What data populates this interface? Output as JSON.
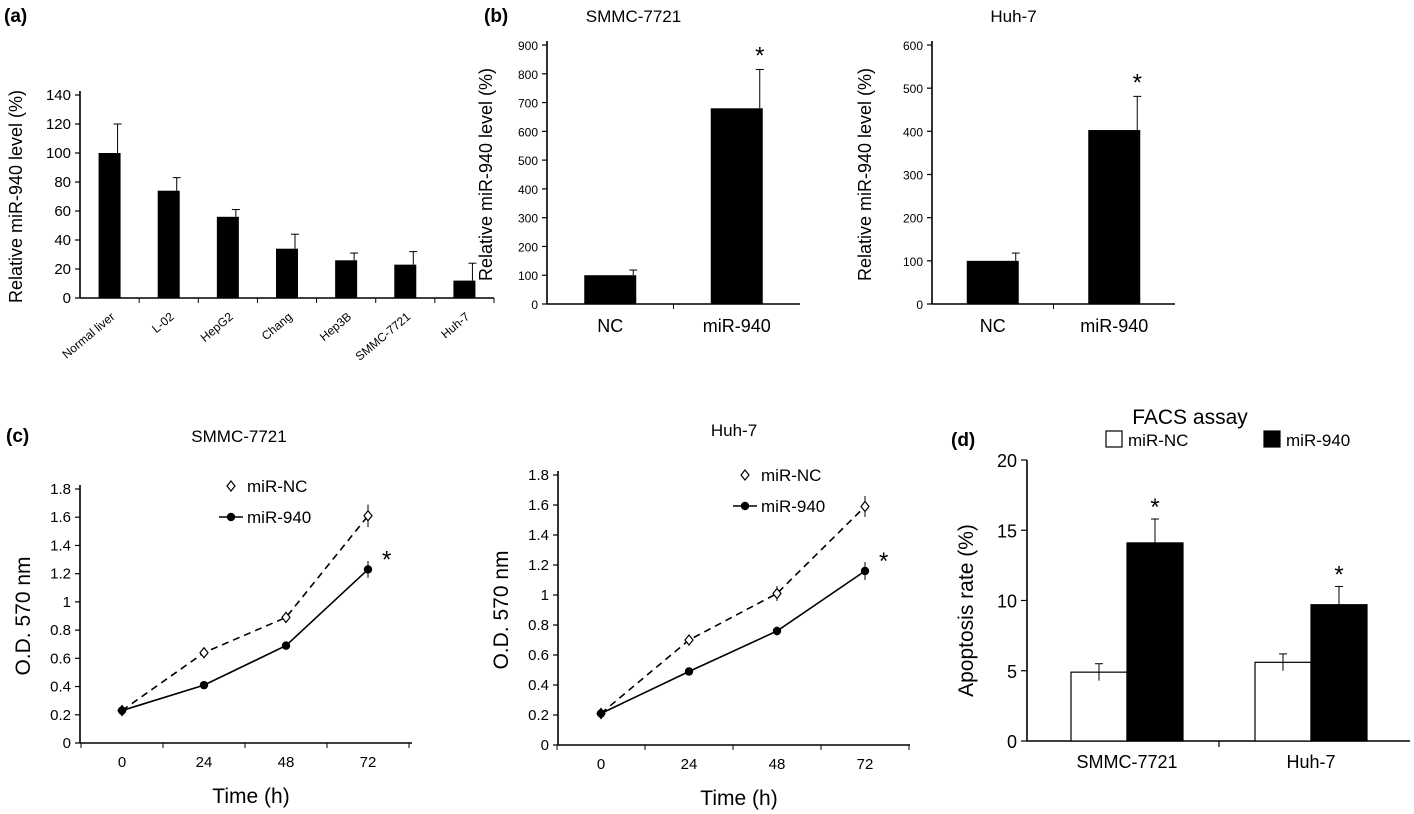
{
  "figure": {
    "panels": [
      {
        "label": "(a)"
      },
      {
        "label": "(b)"
      },
      {
        "label": "(c)"
      },
      {
        "label": "(d)"
      }
    ]
  },
  "chart_data": [
    {
      "id": "a",
      "type": "bar",
      "title": "",
      "xlabel": "",
      "ylabel": "Relative miR-940 level (%)",
      "ylim": [
        0,
        140
      ],
      "yticks": [
        0,
        20,
        40,
        60,
        80,
        100,
        120,
        140
      ],
      "categories": [
        "Normal liver",
        "L-02",
        "HepG2",
        "Chang",
        "Hep3B",
        "SMMC-7721",
        "Huh-7"
      ],
      "series": [
        {
          "values": [
            100,
            74,
            56,
            34,
            26,
            23,
            12
          ],
          "errors": [
            20,
            9,
            5,
            10,
            5,
            9,
            12
          ],
          "color": "#000000"
        }
      ]
    },
    {
      "id": "b1",
      "type": "bar",
      "title": "SMMC-7721",
      "xlabel": "",
      "ylabel": "Relative miR-940 level (%)",
      "ylim": [
        0,
        900
      ],
      "yticks": [
        0,
        100,
        200,
        300,
        400,
        500,
        600,
        700,
        800,
        900
      ],
      "categories": [
        "NC",
        "miR-940"
      ],
      "series": [
        {
          "values": [
            100,
            680
          ],
          "errors": [
            18,
            135
          ],
          "color": "#000000"
        }
      ],
      "annotations": [
        {
          "category": "miR-940",
          "text": "*"
        }
      ]
    },
    {
      "id": "b2",
      "type": "bar",
      "title": "Huh-7",
      "xlabel": "",
      "ylabel": "Relative miR-940 level (%)",
      "ylim": [
        0,
        600
      ],
      "yticks": [
        0,
        100,
        200,
        300,
        400,
        500,
        600
      ],
      "categories": [
        "NC",
        "miR-940"
      ],
      "series": [
        {
          "values": [
            100,
            403
          ],
          "errors": [
            18,
            78
          ],
          "color": "#000000"
        }
      ],
      "annotations": [
        {
          "category": "miR-940",
          "text": "*"
        }
      ]
    },
    {
      "id": "c1",
      "type": "line",
      "title": "SMMC-7721",
      "xlabel": "Time (h)",
      "ylabel": "O.D. 570 nm",
      "ylim": [
        0,
        1.8
      ],
      "yticks": [
        "0",
        "0.2",
        "0.4",
        "0.6",
        "0.8",
        "1",
        "1.2",
        "1.4",
        "1.6",
        "1.8"
      ],
      "categories": [
        "0",
        "24",
        "48",
        "72"
      ],
      "legend_position": "top-center",
      "series": [
        {
          "name": "miR-NC",
          "values": [
            0.23,
            0.64,
            0.89,
            1.61
          ],
          "errors": [
            0.01,
            0.02,
            0.04,
            0.08
          ],
          "style": "dashed",
          "marker": "open-diamond"
        },
        {
          "name": "miR-940",
          "values": [
            0.23,
            0.41,
            0.69,
            1.23
          ],
          "errors": [
            0.01,
            0.01,
            0.02,
            0.06
          ],
          "style": "solid",
          "marker": "filled-circle"
        }
      ],
      "annotations": [
        {
          "series": "miR-940",
          "x": "72",
          "text": "*"
        }
      ]
    },
    {
      "id": "c2",
      "type": "line",
      "title": "Huh-7",
      "xlabel": "Time (h)",
      "ylabel": "O.D. 570 nm",
      "ylim": [
        0,
        1.8
      ],
      "yticks": [
        "0",
        "0.2",
        "0.4",
        "0.6",
        "0.8",
        "1",
        "1.2",
        "1.4",
        "1.6",
        "1.8"
      ],
      "categories": [
        "0",
        "24",
        "48",
        "72"
      ],
      "legend_position": "top-center",
      "series": [
        {
          "name": "miR-NC",
          "values": [
            0.21,
            0.7,
            1.01,
            1.59
          ],
          "errors": [
            0.01,
            0.02,
            0.05,
            0.07
          ],
          "style": "dashed",
          "marker": "open-diamond"
        },
        {
          "name": "miR-940",
          "values": [
            0.21,
            0.49,
            0.76,
            1.16
          ],
          "errors": [
            0.01,
            0.01,
            0.03,
            0.06
          ],
          "style": "solid",
          "marker": "filled-circle"
        }
      ],
      "annotations": [
        {
          "series": "miR-940",
          "x": "72",
          "text": "*"
        }
      ]
    },
    {
      "id": "d",
      "type": "bar",
      "title": "FACS assay",
      "xlabel": "",
      "ylabel": "Apoptosis rate (%)",
      "ylim": [
        0,
        20
      ],
      "yticks": [
        0,
        5,
        10,
        15,
        20
      ],
      "categories": [
        "SMMC-7721",
        "Huh-7"
      ],
      "legend_position": "top",
      "series": [
        {
          "name": "miR-NC",
          "values": [
            4.9,
            5.6
          ],
          "errors": [
            0.6,
            0.6
          ],
          "color": "#ffffff"
        },
        {
          "name": "miR-940",
          "values": [
            14.1,
            9.7
          ],
          "errors": [
            1.7,
            1.3
          ],
          "color": "#000000"
        }
      ],
      "annotations": [
        {
          "series": "miR-940",
          "category": "SMMC-7721",
          "text": "*"
        },
        {
          "series": "miR-940",
          "category": "Huh-7",
          "text": "*"
        }
      ]
    }
  ]
}
